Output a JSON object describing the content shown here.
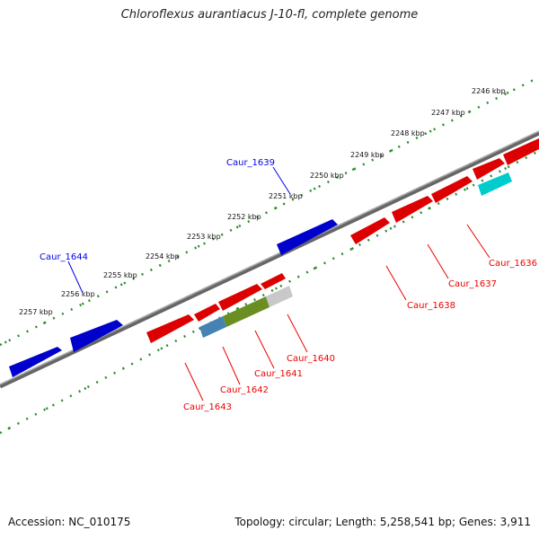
{
  "title": "Chloroflexus aurantiacus J-10-fl, complete genome",
  "footer": {
    "accession": "Accession: NC_010175",
    "topology": "Topology: circular; Length: 5,258,541 bp; Genes: 3,911"
  },
  "colors": {
    "forward_strand": "#0000ee",
    "reverse_strand": "#ee0000",
    "backbone": "#888888",
    "tick_track": "#2e8b2e",
    "gene_cyan": "#00cccc",
    "gene_olive": "#6b8e23",
    "gene_steelblue": "#4682b4",
    "gene_gray": "#c8c8c8"
  },
  "scale_ticks": [
    {
      "label": "2246 kbp"
    },
    {
      "label": "2247 kbp"
    },
    {
      "label": "2248 kbp"
    },
    {
      "label": "2249 kbp"
    },
    {
      "label": "2250 kbp"
    },
    {
      "label": "2251 kbp"
    },
    {
      "label": "2252 kbp"
    },
    {
      "label": "2253 kbp"
    },
    {
      "label": "2254 kbp"
    },
    {
      "label": "2255 kbp"
    },
    {
      "label": "2256 kbp"
    },
    {
      "label": "2257 kbp"
    }
  ],
  "gene_labels": [
    {
      "name": "Caur_1639",
      "strand": "forward"
    },
    {
      "name": "Caur_1644",
      "strand": "forward"
    },
    {
      "name": "Caur_1636",
      "strand": "reverse"
    },
    {
      "name": "Caur_1637",
      "strand": "reverse"
    },
    {
      "name": "Caur_1638",
      "strand": "reverse"
    },
    {
      "name": "Caur_1640",
      "strand": "reverse"
    },
    {
      "name": "Caur_1641",
      "strand": "reverse"
    },
    {
      "name": "Caur_1642",
      "strand": "reverse"
    },
    {
      "name": "Caur_1643",
      "strand": "reverse"
    }
  ]
}
